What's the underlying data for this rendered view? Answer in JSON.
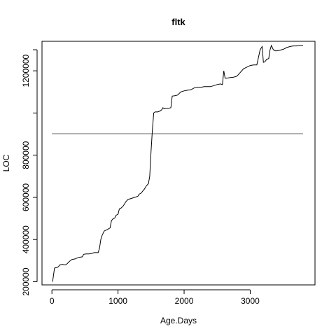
{
  "chart_data": {
    "type": "line",
    "title": "fltk",
    "xlabel": "Age.Days",
    "ylabel": "LOC",
    "xlim": [
      -150,
      3980
    ],
    "ylim": [
      185000,
      1340000
    ],
    "x_ticks": [
      0,
      1000,
      2000,
      3000
    ],
    "x_tick_labels": [
      "0",
      "1000",
      "2000",
      "3000"
    ],
    "y_ticks": [
      200000,
      400000,
      600000,
      800000,
      1200000
    ],
    "y_tick_labels": [
      "200000",
      "400000",
      "600000",
      "800000",
      "1200000"
    ],
    "grid": false,
    "legend": "none",
    "colors": {
      "series": "#000000",
      "reference_line": "#666666"
    },
    "series": [
      {
        "x": [
          10,
          40,
          80,
          100,
          120,
          160,
          200,
          230,
          260,
          300,
          350,
          400,
          460,
          480,
          520,
          560,
          600,
          640,
          700,
          720,
          740,
          760,
          790,
          800,
          840,
          880,
          900,
          930,
          950,
          970,
          1000,
          1020,
          1050,
          1080,
          1120,
          1150,
          1200,
          1250,
          1300,
          1320,
          1350,
          1400,
          1430,
          1460,
          1480,
          1500,
          1520,
          1540,
          1560,
          1600,
          1640,
          1660,
          1680,
          1700,
          1720,
          1760,
          1800,
          1820,
          1860,
          1900,
          1950,
          2000,
          2050,
          2100,
          2160,
          2200,
          2260,
          2300,
          2350,
          2400,
          2450,
          2500,
          2550,
          2580,
          2600,
          2620,
          2640,
          2700,
          2750,
          2800,
          2900,
          3000,
          3050,
          3100,
          3150,
          3180,
          3200,
          3220,
          3250,
          3280,
          3300,
          3320,
          3350,
          3380,
          3400,
          3450,
          3500,
          3550,
          3600,
          3650,
          3700,
          3750,
          3800
        ],
        "y": [
          200000,
          265000,
          268000,
          272000,
          280000,
          282000,
          280000,
          285000,
          295000,
          305000,
          308000,
          315000,
          318000,
          330000,
          332000,
          332000,
          334000,
          338000,
          338000,
          360000,
          400000,
          420000,
          440000,
          442000,
          448000,
          455000,
          490000,
          500000,
          502000,
          515000,
          520000,
          545000,
          550000,
          560000,
          580000,
          590000,
          595000,
          600000,
          605000,
          615000,
          620000,
          640000,
          655000,
          665000,
          700000,
          820000,
          920000,
          1000000,
          1005000,
          1005000,
          1010000,
          1015000,
          1025000,
          1020000,
          1022000,
          1022000,
          1025000,
          1080000,
          1082000,
          1085000,
          1100000,
          1105000,
          1108000,
          1110000,
          1120000,
          1122000,
          1122000,
          1125000,
          1125000,
          1125000,
          1130000,
          1135000,
          1138000,
          1135000,
          1200000,
          1165000,
          1165000,
          1168000,
          1170000,
          1175000,
          1210000,
          1225000,
          1228000,
          1228000,
          1300000,
          1315000,
          1240000,
          1242000,
          1255000,
          1258000,
          1300000,
          1320000,
          1300000,
          1295000,
          1295000,
          1298000,
          1302000,
          1310000,
          1315000,
          1318000,
          1318000,
          1320000,
          1320000
        ]
      }
    ],
    "reference_line": {
      "y": 902000,
      "x_from": 0,
      "x_to": 3800
    }
  }
}
